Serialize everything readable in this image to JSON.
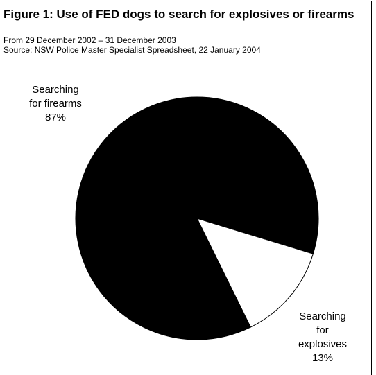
{
  "figure": {
    "title": "Figure 1: Use of FED dogs to search for explosives or firearms",
    "subtitle_line1": "From 29 December 2002 – 31 December 2003",
    "subtitle_line2": "Source:  NSW Police Master Specialist Spreadsheet, 22 January 2004"
  },
  "chart_data": {
    "type": "pie",
    "title": "Figure 1: Use of FED dogs to search for explosives or firearms",
    "categories": [
      "Searching for firearms",
      "Searching for explosives"
    ],
    "values": [
      87,
      13
    ],
    "value_labels": [
      "87%",
      "13%"
    ],
    "colors": [
      "#000000",
      "#ffffff"
    ],
    "labels": {
      "firearms": {
        "line1": "Searching",
        "line2": "for firearms",
        "pct": "87%"
      },
      "explosives": {
        "line1": "Searching",
        "line2": "for",
        "line3": "explosives",
        "pct": "13%"
      }
    },
    "legend": "none"
  }
}
